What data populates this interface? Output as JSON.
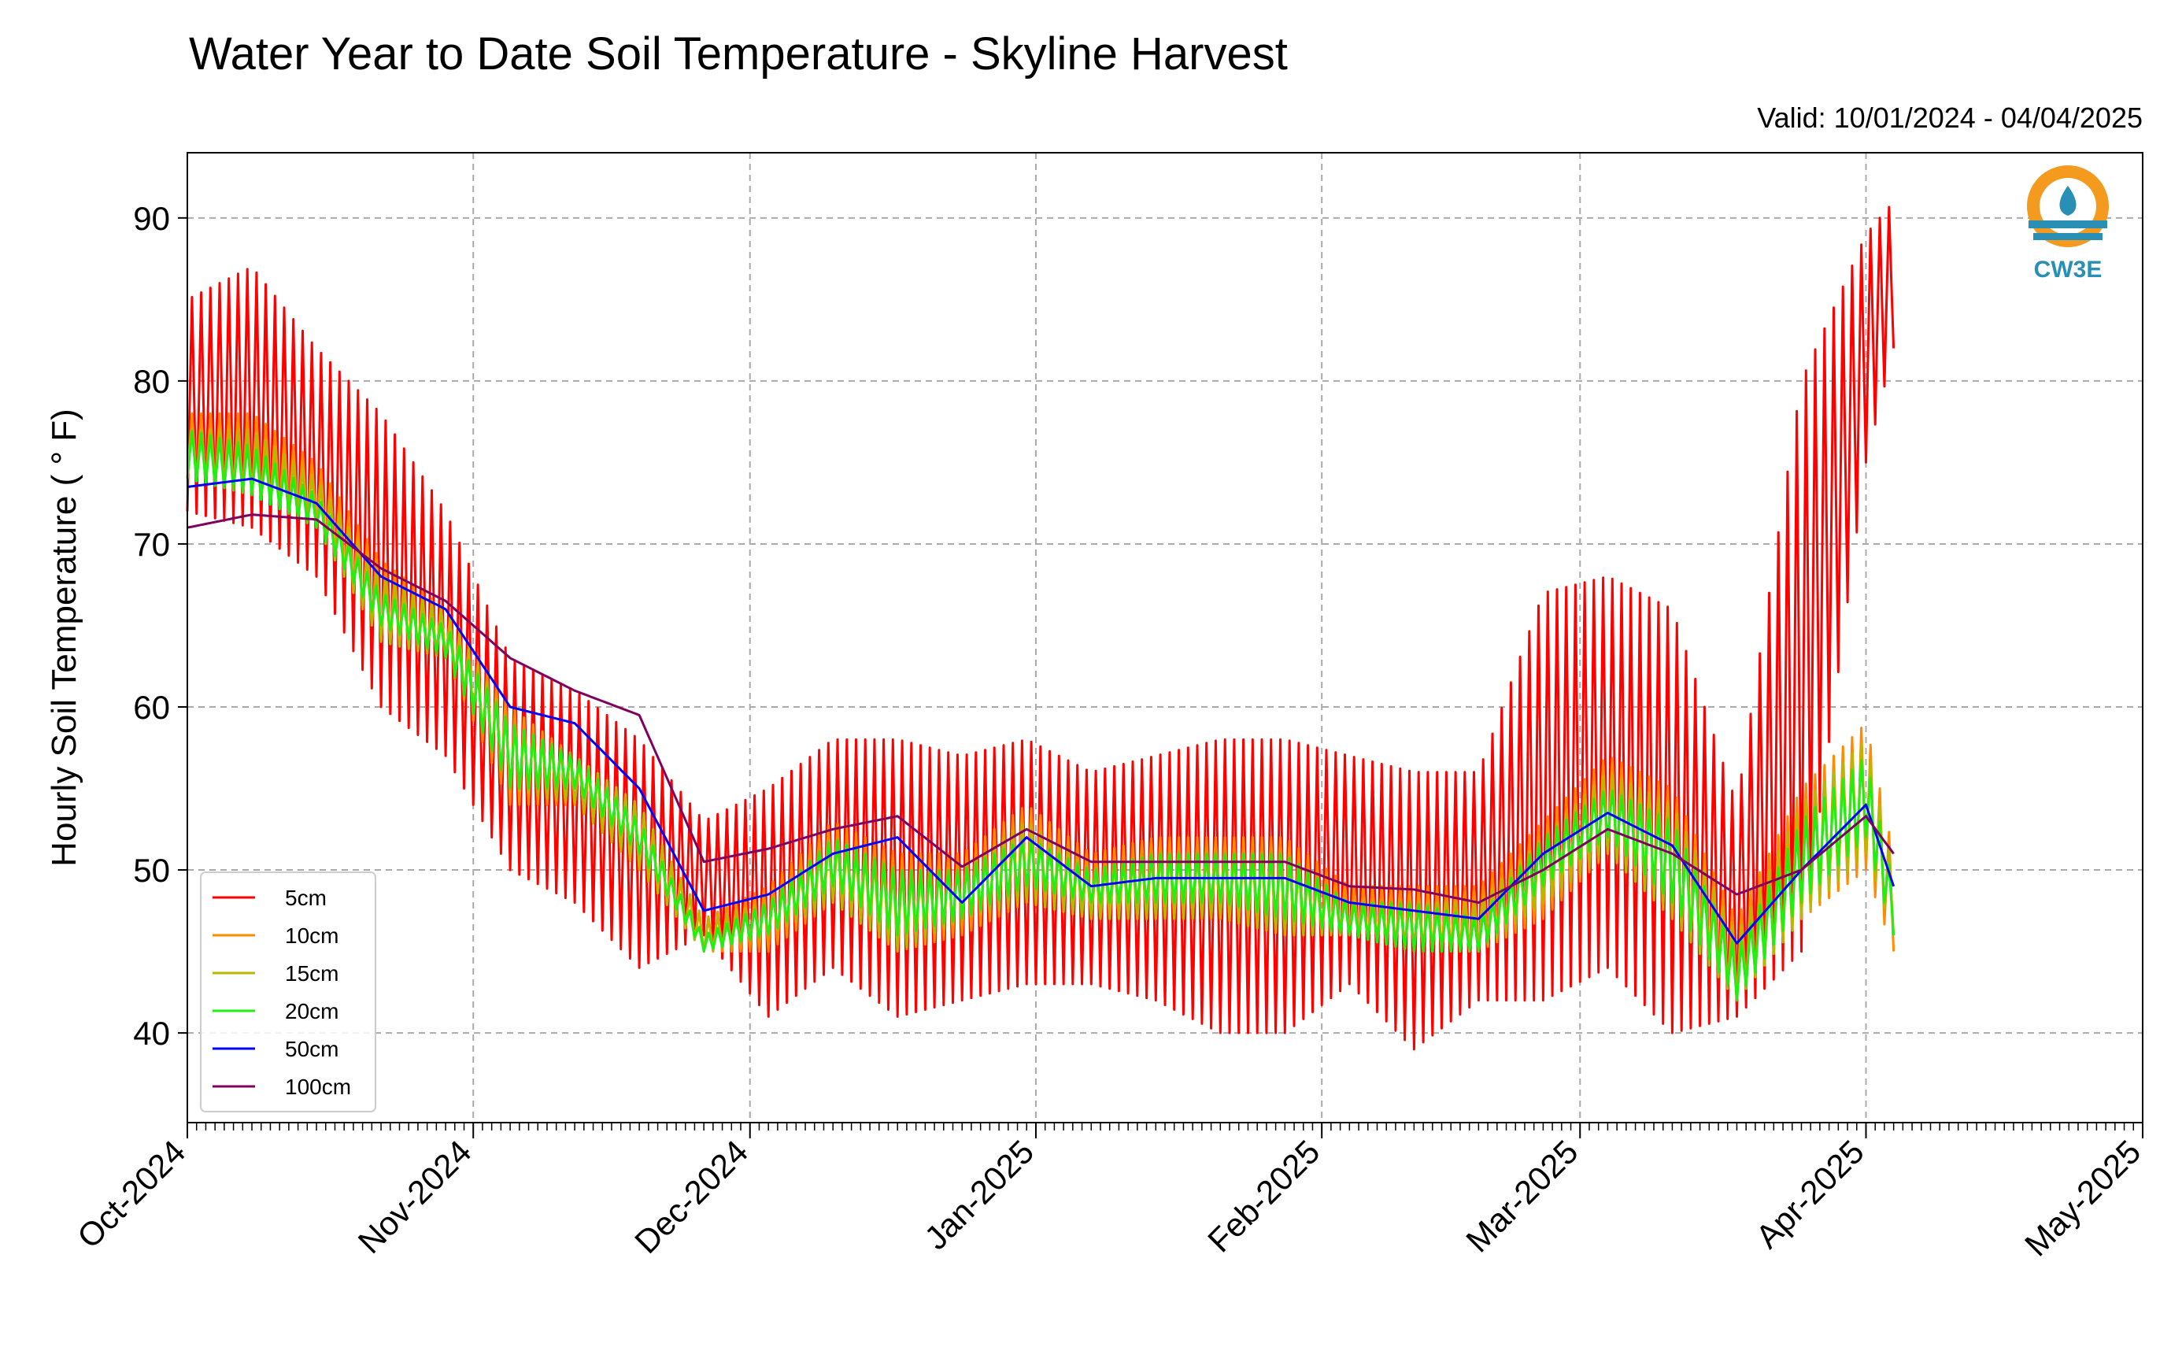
{
  "chart_data": {
    "type": "line",
    "title": "Water Year to Date Soil Temperature - Skyline Harvest",
    "subtitle": "Valid: 10/01/2024 - 04/04/2025",
    "ylabel": "Hourly Soil Temperature ( ° F)",
    "xlabel": "",
    "ylim": [
      34.5,
      94
    ],
    "yticks": [
      40,
      50,
      60,
      70,
      80,
      90
    ],
    "xlim": [
      "2024-10-01",
      "2025-05-01"
    ],
    "xticks": [
      {
        "date": "2024-10-01",
        "label": "Oct-2024"
      },
      {
        "date": "2024-11-01",
        "label": "Nov-2024"
      },
      {
        "date": "2024-12-01",
        "label": "Dec-2024"
      },
      {
        "date": "2025-01-01",
        "label": "Jan-2025"
      },
      {
        "date": "2025-02-01",
        "label": "Feb-2025"
      },
      {
        "date": "2025-03-01",
        "label": "Mar-2025"
      },
      {
        "date": "2025-04-01",
        "label": "Apr-2025"
      },
      {
        "date": "2025-05-01",
        "label": "May-2025"
      }
    ],
    "grid": true,
    "legend_position": "lower-left",
    "logo": {
      "text": "CW3E",
      "color": "#2a8fb5",
      "accent": "#f39a1f"
    },
    "series": [
      {
        "name": "5cm",
        "color": "#ff0000",
        "points": [
          [
            "2024-10-01",
            72,
            85
          ],
          [
            "2024-10-08",
            71,
            87
          ],
          [
            "2024-10-15",
            68,
            82
          ],
          [
            "2024-10-22",
            60,
            78
          ],
          [
            "2024-10-29",
            57,
            72
          ],
          [
            "2024-11-05",
            50,
            63
          ],
          [
            "2024-11-12",
            48,
            61
          ],
          [
            "2024-11-19",
            44,
            58
          ],
          [
            "2024-11-26",
            46,
            53
          ],
          [
            "2024-12-03",
            41,
            55
          ],
          [
            "2024-12-10",
            44,
            58
          ],
          [
            "2024-12-17",
            41,
            58
          ],
          [
            "2024-12-24",
            42,
            57
          ],
          [
            "2024-12-31",
            43,
            58
          ],
          [
            "2025-01-07",
            43,
            56
          ],
          [
            "2025-01-14",
            42,
            57
          ],
          [
            "2025-01-21",
            40,
            58
          ],
          [
            "2025-01-28",
            40,
            58
          ],
          [
            "2025-02-04",
            43,
            57
          ],
          [
            "2025-02-11",
            39,
            56
          ],
          [
            "2025-02-18",
            42,
            56
          ],
          [
            "2025-02-25",
            42,
            67
          ],
          [
            "2025-03-04",
            44,
            68
          ],
          [
            "2025-03-11",
            40,
            66
          ],
          [
            "2025-03-18",
            41,
            54
          ],
          [
            "2025-03-25",
            45,
            80
          ],
          [
            "2025-04-01",
            75,
            89
          ],
          [
            "2025-04-04",
            82,
            91
          ]
        ]
      },
      {
        "name": "10cm",
        "color": "#ff8c00",
        "points": [
          [
            "2024-10-01",
            74,
            78
          ],
          [
            "2024-10-08",
            73,
            78
          ],
          [
            "2024-10-15",
            71,
            75
          ],
          [
            "2024-10-22",
            64,
            69
          ],
          [
            "2024-10-29",
            63,
            66
          ],
          [
            "2024-11-05",
            54,
            60
          ],
          [
            "2024-11-12",
            54,
            57
          ],
          [
            "2024-11-19",
            50,
            54
          ],
          [
            "2024-11-26",
            45,
            47
          ],
          [
            "2024-12-03",
            45,
            49
          ],
          [
            "2024-12-10",
            48,
            53
          ],
          [
            "2024-12-17",
            45,
            51
          ],
          [
            "2024-12-24",
            46,
            51
          ],
          [
            "2024-12-31",
            48,
            54
          ],
          [
            "2025-01-07",
            47,
            51
          ],
          [
            "2025-01-14",
            47,
            52
          ],
          [
            "2025-01-21",
            47,
            52
          ],
          [
            "2025-01-28",
            46,
            52
          ],
          [
            "2025-02-04",
            46,
            49
          ],
          [
            "2025-02-11",
            45,
            49
          ],
          [
            "2025-02-18",
            45,
            49
          ],
          [
            "2025-02-25",
            47,
            53
          ],
          [
            "2025-03-04",
            51,
            57
          ],
          [
            "2025-03-11",
            47,
            55
          ],
          [
            "2025-03-18",
            42,
            47
          ],
          [
            "2025-03-25",
            47,
            55
          ],
          [
            "2025-04-01",
            50,
            59
          ],
          [
            "2025-04-04",
            45,
            51
          ]
        ]
      },
      {
        "name": "15cm",
        "color": "#b8b800",
        "points": [
          [
            "2024-10-01",
            74,
            77
          ],
          [
            "2024-10-08",
            73,
            77
          ],
          [
            "2024-10-15",
            71,
            74
          ],
          [
            "2024-10-22",
            64,
            68
          ],
          [
            "2024-10-29",
            63,
            66
          ],
          [
            "2024-11-05",
            55,
            59
          ],
          [
            "2024-11-12",
            54,
            57
          ],
          [
            "2024-11-19",
            50,
            54
          ],
          [
            "2024-11-26",
            45,
            47
          ],
          [
            "2024-12-03",
            46,
            48
          ],
          [
            "2024-12-10",
            48,
            52
          ],
          [
            "2024-12-17",
            45,
            50
          ],
          [
            "2024-12-24",
            47,
            50
          ],
          [
            "2024-12-31",
            48,
            53
          ],
          [
            "2025-01-07",
            47,
            50
          ],
          [
            "2025-01-14",
            47,
            51
          ],
          [
            "2025-01-21",
            47,
            51
          ],
          [
            "2025-01-28",
            46,
            51
          ],
          [
            "2025-02-04",
            46,
            48
          ],
          [
            "2025-02-11",
            45,
            48
          ],
          [
            "2025-02-18",
            45,
            48
          ],
          [
            "2025-02-25",
            48,
            52
          ],
          [
            "2025-03-04",
            51,
            56
          ],
          [
            "2025-03-11",
            47,
            54
          ],
          [
            "2025-03-18",
            42,
            46
          ],
          [
            "2025-03-25",
            47,
            54
          ],
          [
            "2025-04-01",
            51,
            58
          ],
          [
            "2025-04-04",
            46,
            50
          ]
        ]
      },
      {
        "name": "20cm",
        "color": "#22ee11",
        "points": [
          [
            "2024-10-01",
            74,
            77
          ],
          [
            "2024-10-08",
            73,
            76
          ],
          [
            "2024-10-15",
            71,
            73
          ],
          [
            "2024-10-22",
            65,
            67
          ],
          [
            "2024-10-29",
            63,
            65
          ],
          [
            "2024-11-05",
            55,
            59
          ],
          [
            "2024-11-12",
            55,
            57
          ],
          [
            "2024-11-19",
            51,
            53
          ],
          [
            "2024-11-26",
            45,
            46
          ],
          [
            "2024-12-03",
            46,
            48
          ],
          [
            "2024-12-10",
            49,
            52
          ],
          [
            "2024-12-17",
            46,
            50
          ],
          [
            "2024-12-24",
            47,
            50
          ],
          [
            "2024-12-31",
            49,
            52
          ],
          [
            "2025-01-07",
            48,
            50
          ],
          [
            "2025-01-14",
            48,
            51
          ],
          [
            "2025-01-21",
            48,
            51
          ],
          [
            "2025-01-28",
            47,
            51
          ],
          [
            "2025-02-04",
            46,
            48
          ],
          [
            "2025-02-11",
            45,
            48
          ],
          [
            "2025-02-18",
            45,
            47
          ],
          [
            "2025-02-25",
            49,
            52
          ],
          [
            "2025-03-04",
            52,
            55
          ],
          [
            "2025-03-11",
            48,
            53
          ],
          [
            "2025-03-18",
            42,
            45
          ],
          [
            "2025-03-25",
            48,
            53
          ],
          [
            "2025-04-01",
            52,
            57
          ],
          [
            "2025-04-04",
            46,
            49
          ]
        ]
      },
      {
        "name": "50cm",
        "color": "#0000ff",
        "points": [
          [
            "2024-10-01",
            73.5
          ],
          [
            "2024-10-08",
            74
          ],
          [
            "2024-10-15",
            72.5
          ],
          [
            "2024-10-22",
            68
          ],
          [
            "2024-10-29",
            66
          ],
          [
            "2024-11-05",
            60
          ],
          [
            "2024-11-12",
            59
          ],
          [
            "2024-11-19",
            55
          ],
          [
            "2024-11-26",
            47.5
          ],
          [
            "2024-12-03",
            48.5
          ],
          [
            "2024-12-10",
            51
          ],
          [
            "2024-12-17",
            52
          ],
          [
            "2024-12-24",
            48
          ],
          [
            "2024-12-31",
            52
          ],
          [
            "2025-01-07",
            49
          ],
          [
            "2025-01-14",
            49.5
          ],
          [
            "2025-01-21",
            49.5
          ],
          [
            "2025-01-28",
            49.5
          ],
          [
            "2025-02-04",
            48
          ],
          [
            "2025-02-11",
            47.5
          ],
          [
            "2025-02-18",
            47
          ],
          [
            "2025-02-25",
            51
          ],
          [
            "2025-03-04",
            53.5
          ],
          [
            "2025-03-11",
            51.5
          ],
          [
            "2025-03-18",
            45.5
          ],
          [
            "2025-03-25",
            50
          ],
          [
            "2025-04-01",
            54
          ],
          [
            "2025-04-04",
            49
          ]
        ]
      },
      {
        "name": "100cm",
        "color": "#800060",
        "points": [
          [
            "2024-10-01",
            71
          ],
          [
            "2024-10-08",
            71.8
          ],
          [
            "2024-10-15",
            71.5
          ],
          [
            "2024-10-22",
            68.5
          ],
          [
            "2024-10-29",
            66.5
          ],
          [
            "2024-11-05",
            63
          ],
          [
            "2024-11-12",
            61
          ],
          [
            "2024-11-19",
            59.5
          ],
          [
            "2024-11-26",
            50.5
          ],
          [
            "2024-12-03",
            51.3
          ],
          [
            "2024-12-10",
            52.5
          ],
          [
            "2024-12-17",
            53.3
          ],
          [
            "2024-12-24",
            50.2
          ],
          [
            "2024-12-31",
            52.5
          ],
          [
            "2025-01-07",
            50.5
          ],
          [
            "2025-01-14",
            50.5
          ],
          [
            "2025-01-21",
            50.5
          ],
          [
            "2025-01-28",
            50.5
          ],
          [
            "2025-02-04",
            49
          ],
          [
            "2025-02-11",
            48.8
          ],
          [
            "2025-02-18",
            48
          ],
          [
            "2025-02-25",
            50
          ],
          [
            "2025-03-04",
            52.5
          ],
          [
            "2025-03-11",
            51
          ],
          [
            "2025-03-18",
            48.5
          ],
          [
            "2025-03-25",
            50
          ],
          [
            "2025-04-01",
            53.3
          ],
          [
            "2025-04-04",
            51
          ]
        ]
      }
    ]
  }
}
